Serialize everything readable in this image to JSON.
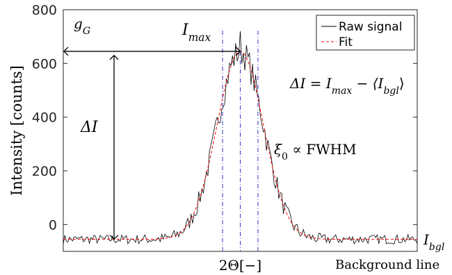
{
  "chart_data": {
    "type": "line",
    "title": "",
    "xlabel": "2Θ[−]",
    "ylabel": "Intensity [counts]",
    "ylim": [
      -100,
      800
    ],
    "yticks": [
      0,
      200,
      400,
      600,
      800
    ],
    "xticks_shown": false,
    "grid": false,
    "legend_position": "top-right",
    "peak_center": 0.5,
    "fwhm_bounds": [
      0.45,
      0.55
    ],
    "peak_max": 645,
    "background_mean": -55,
    "series": [
      {
        "name": "Raw signal",
        "color": "#000000",
        "style": "solid",
        "description_x_domain": [
          0,
          1
        ],
        "peak_spike": 720
      },
      {
        "name": "Fit",
        "color": "#ff0000",
        "style": "dashed",
        "model": "gaussian",
        "amplitude": 700,
        "offset": -55
      }
    ]
  },
  "annotations": {
    "gG": "g",
    "gG_sub": "G",
    "Imax": "I",
    "Imax_sub": "max",
    "deltaI": "ΔI",
    "equation": "ΔI = I",
    "equation_sub1": "max",
    "equation_mid": " − ⟨I",
    "equation_sub2": "bgl",
    "equation_end": "⟩",
    "xi": "ξ",
    "xi_sub": "0",
    "xi_rest": " ∝ FWHM",
    "Ibgl": "I",
    "Ibgl_sub": "bgl",
    "background_line": "Background line"
  },
  "colors": {
    "raw": "#000000",
    "fit": "#ff0000",
    "vlines": "#3333cc"
  }
}
